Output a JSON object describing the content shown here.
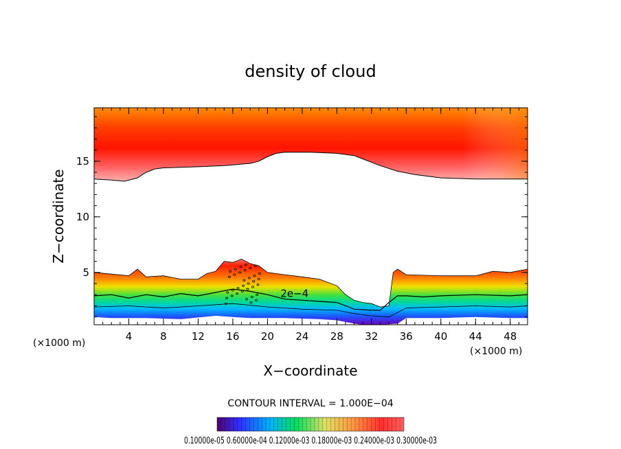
{
  "chart_data": {
    "type": "contour",
    "title": "density of cloud",
    "xlabel": "X−coordinate",
    "ylabel": "Z−coordinate",
    "x_unit_left": "(×1000 m)",
    "x_unit_right": "(×1000 m)",
    "xlim": [
      0,
      50
    ],
    "ylim": [
      0.3,
      19.8
    ],
    "x_ticks": [
      4,
      8,
      12,
      16,
      20,
      24,
      28,
      32,
      36,
      40,
      44,
      48
    ],
    "y_ticks": [
      5,
      10,
      15
    ],
    "contour_interval_label": "CONTOUR INTERVAL = 1.000E−04",
    "contour_label": "2e−4",
    "contour_label_pos": [
      21.5,
      2.8
    ],
    "colorbar_label": "0.10000e-05 0.60000e-04 0.12000e-03 0.18000e-03 0.24000e-03 0.30000e-03",
    "upper_layer_bottom": {
      "x": [
        0,
        2,
        3.5,
        5,
        6,
        7,
        8,
        12,
        15,
        18,
        19,
        20,
        21,
        22,
        25,
        28,
        30,
        31,
        33,
        35,
        37,
        40,
        44,
        48,
        50
      ],
      "z": [
        13.4,
        13.3,
        13.2,
        13.5,
        14.0,
        14.3,
        14.4,
        14.5,
        14.6,
        14.8,
        15.0,
        15.4,
        15.7,
        15.8,
        15.8,
        15.7,
        15.5,
        15.2,
        14.6,
        14.1,
        13.8,
        13.5,
        13.4,
        13.4,
        13.4
      ]
    },
    "lower_layer_top": {
      "x": [
        0,
        4,
        5,
        6,
        8,
        10,
        12,
        13,
        14,
        15,
        16,
        17,
        18,
        19,
        20,
        22,
        24,
        26,
        28,
        29,
        30,
        31,
        32,
        33,
        34,
        34.5,
        35,
        36,
        40,
        44,
        46,
        48,
        50
      ],
      "z": [
        5.0,
        4.7,
        5.3,
        4.6,
        4.7,
        4.4,
        4.4,
        4.9,
        5.1,
        6.0,
        5.9,
        6.2,
        5.8,
        5.6,
        5.0,
        4.8,
        4.6,
        4.4,
        3.8,
        3.0,
        2.5,
        2.3,
        2.2,
        1.9,
        2.0,
        5.0,
        5.3,
        4.8,
        4.7,
        4.7,
        5.1,
        5.0,
        5.3
      ]
    },
    "contour_2e4": {
      "x": [
        0,
        2,
        4,
        6,
        8,
        10,
        12,
        14,
        16,
        18,
        20,
        22,
        24,
        26,
        28,
        30,
        32,
        33,
        34,
        35,
        36,
        38,
        40,
        44,
        48,
        50
      ],
      "z": [
        2.9,
        3.0,
        2.7,
        3.0,
        2.8,
        3.1,
        2.9,
        3.2,
        3.5,
        3.3,
        3.0,
        2.6,
        2.5,
        2.4,
        2.3,
        1.7,
        1.6,
        1.6,
        2.3,
        2.9,
        2.9,
        2.8,
        2.9,
        3.0,
        2.9,
        3.0
      ]
    },
    "contour_1e4": {
      "x": [
        0,
        4,
        8,
        12,
        16,
        20,
        24,
        28,
        30,
        32,
        34,
        36,
        40,
        44,
        48,
        50
      ],
      "z": [
        1.9,
        2.0,
        1.8,
        2.0,
        2.2,
        1.9,
        1.7,
        1.6,
        1.3,
        1.1,
        1.0,
        1.8,
        1.9,
        2.0,
        1.9,
        2.0
      ]
    },
    "lower_layer_bottom": {
      "x": [
        0,
        2,
        6,
        10,
        14,
        16,
        18,
        22,
        26,
        28,
        30,
        31,
        33,
        35,
        36,
        40,
        44,
        48,
        50
      ],
      "z": [
        1.0,
        0.9,
        0.9,
        0.8,
        1.1,
        1.0,
        0.9,
        0.9,
        0.8,
        0.7,
        0.4,
        0.3,
        0.3,
        0.4,
        0.9,
        0.9,
        1.0,
        0.9,
        0.9
      ]
    }
  }
}
